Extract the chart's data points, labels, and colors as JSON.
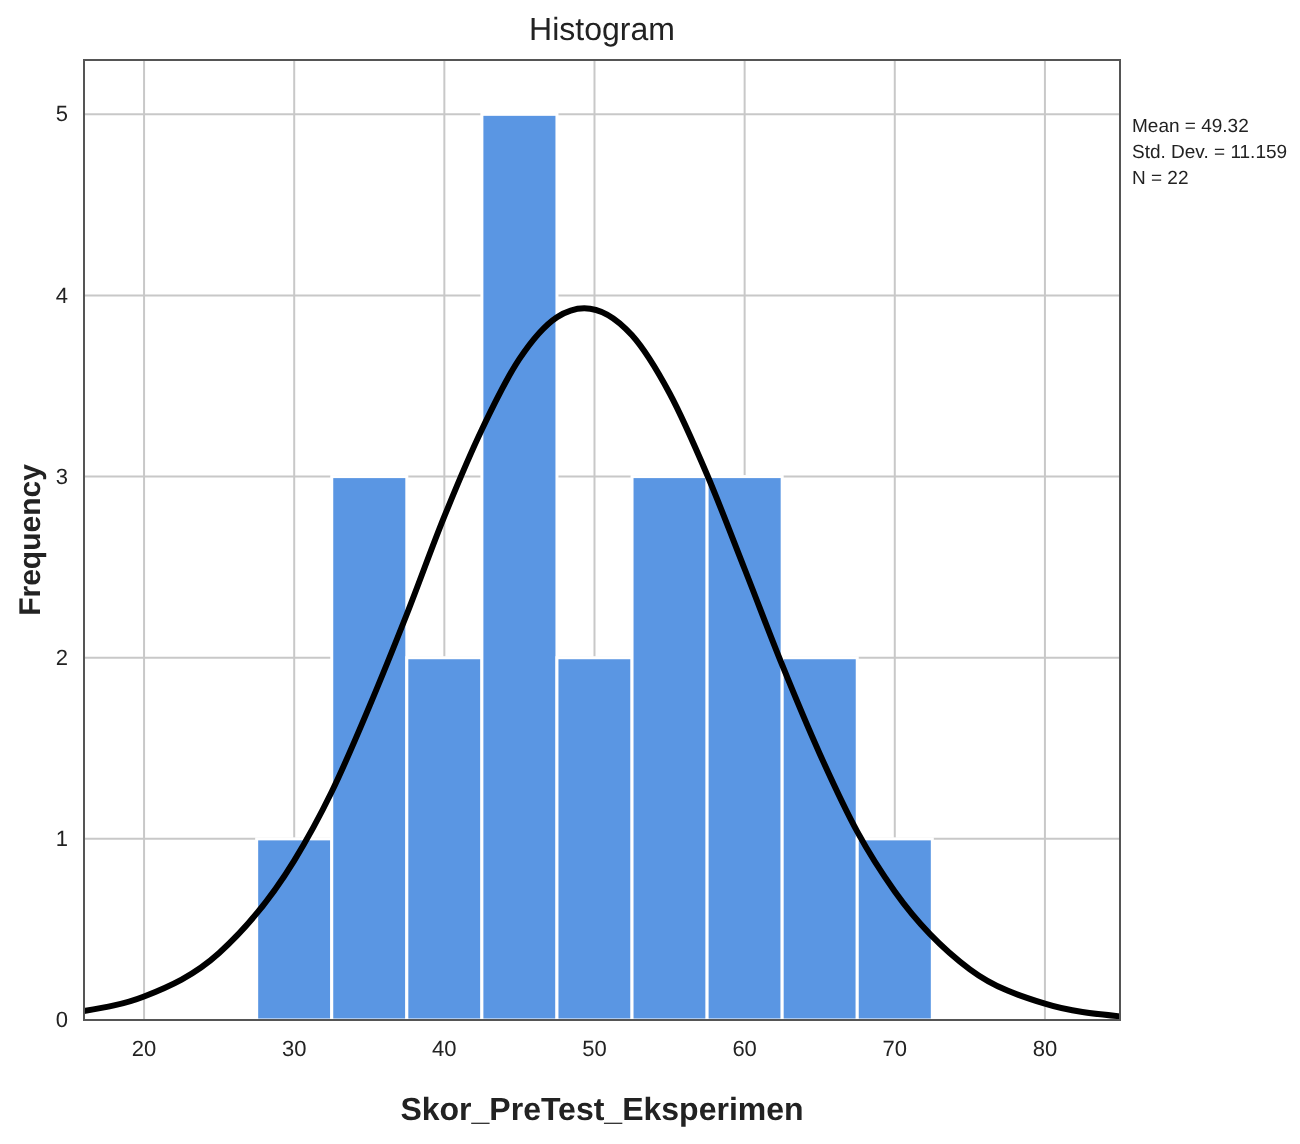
{
  "chart_data": {
    "type": "histogram",
    "title": "Histogram",
    "xlabel": "Skor_PreTest_Eksperimen",
    "ylabel": "Frequency",
    "bins": [
      27.5,
      32.5,
      37.5,
      42.5,
      47.5,
      52.5,
      57.5,
      62.5,
      67.5,
      72.5
    ],
    "values": [
      1,
      3,
      2,
      5,
      2,
      3,
      3,
      2,
      1
    ],
    "color": "#5a96e3",
    "series": [
      {
        "type": "line",
        "color": "#000000",
        "x": [
          16,
          20,
          25,
          30,
          32.5,
          35,
          37.5,
          40,
          42.5,
          45,
          47.5,
          49.32,
          52.5,
          55,
          57.5,
          60,
          62.5,
          65,
          67.5,
          70,
          75,
          80,
          85
        ],
        "values": [
          0.05,
          0.13,
          0.37,
          0.88,
          1.26,
          1.73,
          2.24,
          2.78,
          3.26,
          3.65,
          3.88,
          3.93,
          3.78,
          3.46,
          3.01,
          2.49,
          1.96,
          1.47,
          1.04,
          0.71,
          0.28,
          0.09,
          0.02
        ]
      }
    ],
    "xlim": [
      16,
      85
    ],
    "xticks": [
      20,
      30,
      40,
      50,
      60,
      70,
      80
    ],
    "ylim": [
      0,
      5.3
    ],
    "yticks": [
      0,
      1,
      2,
      3,
      4,
      5
    ],
    "grid": true,
    "marker": "none",
    "line_style": "solid",
    "annotations": [
      "Mean = 49.32",
      "Std. Dev. = 11.159",
      "N = 22"
    ]
  }
}
